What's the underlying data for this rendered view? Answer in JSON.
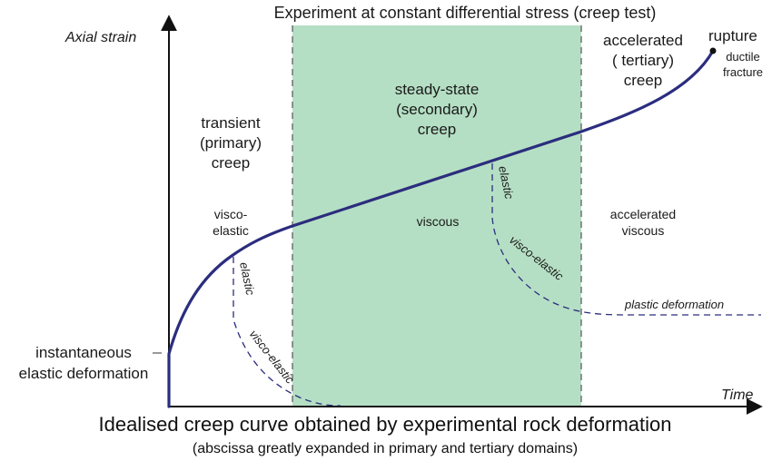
{
  "diagram": {
    "top_title": "Experiment at constant differential stress (creep test)",
    "y_axis_label": "Axial strain",
    "x_axis_label": "Time",
    "regions": {
      "transient": [
        "transient",
        "(primary)",
        "creep"
      ],
      "steady_state": [
        "steady-state",
        "(secondary)",
        "creep"
      ],
      "accelerated": [
        "accelerated",
        "( tertiary)",
        "creep"
      ]
    },
    "behaviours": {
      "visco_elastic": [
        "visco-",
        "elastic"
      ],
      "viscous": "viscous",
      "accelerated_viscous": [
        "accelerated",
        "viscous"
      ]
    },
    "rupture": {
      "label": "rupture",
      "sub": [
        "ductile",
        "fracture"
      ]
    },
    "instantaneous": [
      "instantaneous",
      "elastic deformation"
    ],
    "recovery_labels": {
      "elastic_1": "elastic",
      "visco_elastic_1": "visco-elastic",
      "elastic_2": "elastic",
      "visco_elastic_2": "visco-elastic",
      "plastic": "plastic deformation"
    },
    "caption": "Idealised creep curve obtained by experimental rock deformation",
    "subcaption": "(abscissa greatly expanded in primary and tertiary domains)",
    "colors": {
      "curve": "#2b2d7e",
      "steady_fill": "#b5dfc4",
      "axis": "#111111",
      "boundary": "#555555"
    }
  }
}
